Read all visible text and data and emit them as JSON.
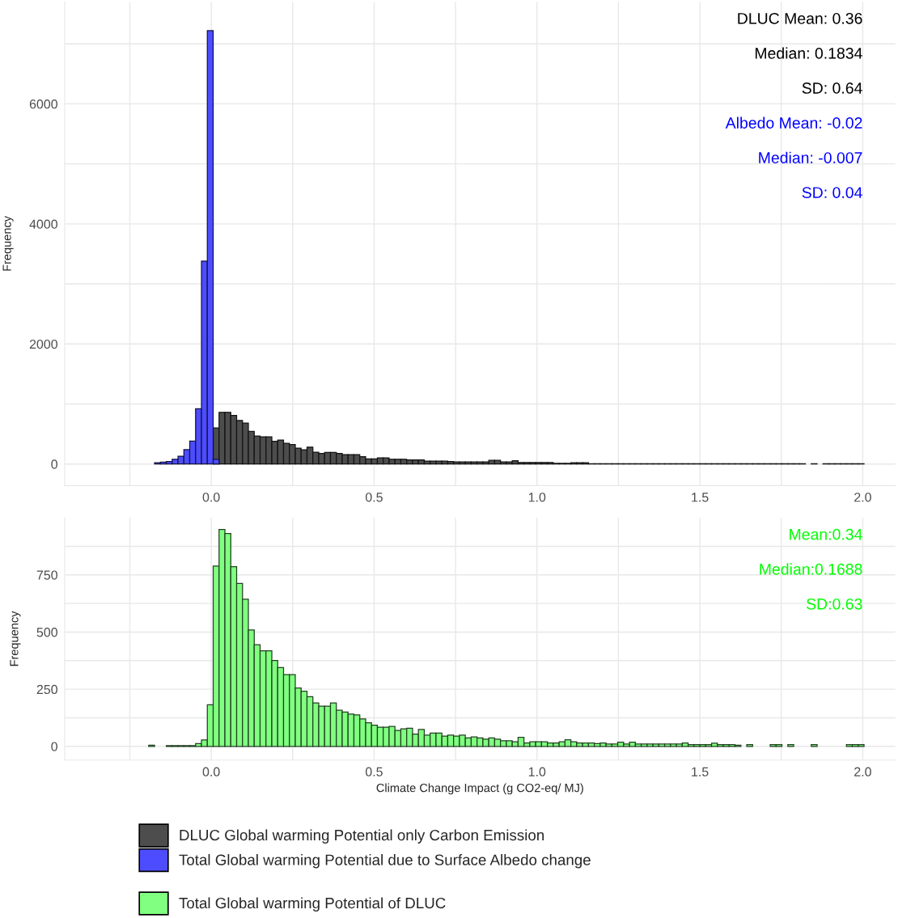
{
  "chart_data": [
    {
      "type": "histogram",
      "ylabel": "Frequency",
      "bins": [
        -0.336,
        -0.318,
        -0.3,
        -0.282,
        -0.264,
        -0.246,
        -0.228,
        -0.21,
        -0.192,
        -0.174,
        -0.156,
        -0.138,
        -0.12,
        -0.102,
        -0.084,
        -0.066,
        -0.048,
        -0.03,
        -0.012,
        0.006,
        0.024,
        0.042,
        0.06,
        0.078,
        0.096,
        0.114,
        0.132,
        0.15,
        0.168,
        0.186,
        0.204,
        0.222,
        0.24,
        0.258,
        0.276,
        0.294,
        0.312,
        0.33,
        0.348,
        0.366,
        0.384,
        0.402,
        0.42,
        0.438,
        0.456,
        0.474,
        0.492,
        0.51,
        0.528,
        0.546,
        0.564,
        0.582,
        0.6,
        0.618,
        0.636,
        0.654,
        0.672,
        0.69,
        0.708,
        0.726,
        0.744,
        0.762,
        0.78,
        0.798,
        0.816,
        0.834,
        0.852,
        0.87,
        0.888,
        0.906,
        0.924,
        0.942,
        0.96,
        0.978,
        0.996,
        1.014,
        1.032,
        1.05,
        1.068,
        1.086,
        1.104,
        1.122,
        1.14,
        1.158,
        1.176,
        1.194,
        1.212,
        1.23,
        1.248,
        1.266,
        1.284,
        1.302,
        1.32,
        1.338,
        1.356,
        1.374,
        1.392,
        1.41,
        1.428,
        1.446,
        1.464,
        1.482,
        1.5,
        1.518,
        1.536,
        1.554,
        1.572,
        1.59,
        1.608,
        1.626,
        1.644,
        1.662,
        1.68,
        1.698,
        1.716,
        1.734,
        1.752,
        1.77,
        1.788,
        1.806,
        1.824,
        1.842,
        1.86,
        1.878,
        1.896,
        1.914,
        1.932,
        1.95,
        1.968,
        1.986,
        2.004
      ],
      "series": [
        {
          "name": "DLUC Global warming Potential only Carbon Emission",
          "color": "#4d4d4d",
          "values": [
            0,
            0,
            0,
            0,
            0,
            0,
            0,
            0,
            0,
            0,
            0,
            0,
            0,
            0,
            0,
            0,
            0,
            0,
            null,
            601,
            861,
            861,
            811,
            726,
            682,
            542,
            466,
            453,
            453,
            377,
            399,
            345,
            323,
            265,
            238,
            282,
            197,
            175,
            193,
            193,
            175,
            157,
            157,
            157,
            121,
            85,
            85,
            103,
            103,
            80,
            80,
            80,
            67,
            67,
            67,
            49,
            49,
            49,
            49,
            40,
            35,
            35,
            35,
            35,
            35,
            35,
            60,
            60,
            35,
            35,
            55,
            25,
            25,
            25,
            25,
            25,
            25,
            10,
            10,
            10,
            20,
            20,
            20,
            5,
            5,
            5,
            5,
            5,
            5,
            5,
            5,
            5,
            5,
            5,
            5,
            5,
            5,
            5,
            5,
            5,
            5,
            5,
            5,
            5,
            5,
            5,
            5,
            5,
            5,
            5,
            5,
            5,
            5,
            5,
            5,
            5,
            5,
            5,
            5,
            5,
            0,
            5,
            0,
            5,
            5,
            5,
            5,
            5,
            5,
            5
          ]
        },
        {
          "name": "Total Global warming Potential due to Surface Albedo change",
          "color": "#4d4dff",
          "values": [
            0,
            0,
            0,
            0,
            0,
            0,
            0,
            0,
            0,
            20,
            30,
            40,
            80,
            130,
            240,
            380,
            920,
            3380,
            7220,
            80,
            0,
            0,
            0,
            0,
            0,
            0,
            0,
            0,
            0,
            0,
            0,
            0,
            0,
            0,
            0,
            0,
            0,
            0,
            0,
            0,
            0,
            0,
            0,
            0,
            0,
            0,
            0,
            0,
            0,
            0,
            0,
            0,
            0,
            0,
            0,
            0,
            0,
            0,
            0,
            0,
            0,
            0,
            0,
            0,
            0,
            0,
            0,
            0,
            0,
            0,
            0,
            0,
            0,
            0,
            0,
            0,
            0,
            0,
            0,
            0,
            0,
            0,
            0,
            0,
            0,
            0,
            0,
            0,
            0,
            0,
            0,
            0,
            0,
            0,
            0,
            0,
            0,
            0,
            0,
            0,
            0,
            0,
            0,
            0,
            0,
            0,
            0,
            0,
            0,
            0,
            0,
            0,
            0,
            0,
            0,
            0,
            0,
            0,
            0,
            0,
            0,
            0,
            0,
            0,
            0,
            0,
            0,
            0,
            0,
            0
          ]
        }
      ],
      "annotations": [
        "DLUC Mean: 0.36",
        "Median: 0.1834",
        "SD: 0.64",
        "Albedo Mean: -0.02",
        "Median: -0.007",
        "SD: 0.04"
      ],
      "xlim": [
        -0.45,
        2.1
      ],
      "ylim": [
        -360,
        7700
      ],
      "xticks": [
        {
          "value": -0.25,
          "label": null
        },
        {
          "value": 0,
          "label": "0.0"
        },
        {
          "value": 0.25,
          "label": null
        },
        {
          "value": 0.5,
          "label": "0.5"
        },
        {
          "value": 0.75,
          "label": null
        },
        {
          "value": 1,
          "label": "1.0"
        },
        {
          "value": 1.25,
          "label": null
        },
        {
          "value": 1.5,
          "label": "1.5"
        },
        {
          "value": 1.75,
          "label": null
        },
        {
          "value": 2,
          "label": "2.0"
        }
      ],
      "yticks": [
        0,
        {
          "value": 1000,
          "label": null
        },
        2000,
        {
          "value": 3000,
          "label": null
        },
        4000,
        {
          "value": 5000,
          "label": null
        },
        6000,
        {
          "value": 7000,
          "label": null
        }
      ],
      "grid": true,
      "legend": "bottom"
    },
    {
      "type": "histogram",
      "ylabel": "Frequency",
      "xlabel": "Climate Change Impact (g CO2-eq/ MJ)",
      "bins": [
        -0.336,
        -0.318,
        -0.3,
        -0.282,
        -0.264,
        -0.246,
        -0.228,
        -0.21,
        -0.192,
        -0.174,
        -0.156,
        -0.138,
        -0.12,
        -0.102,
        -0.084,
        -0.066,
        -0.048,
        -0.03,
        -0.012,
        0.006,
        0.024,
        0.042,
        0.06,
        0.078,
        0.096,
        0.114,
        0.132,
        0.15,
        0.168,
        0.186,
        0.204,
        0.222,
        0.24,
        0.258,
        0.276,
        0.294,
        0.312,
        0.33,
        0.348,
        0.366,
        0.384,
        0.402,
        0.42,
        0.438,
        0.456,
        0.474,
        0.492,
        0.51,
        0.528,
        0.546,
        0.564,
        0.582,
        0.6,
        0.618,
        0.636,
        0.654,
        0.672,
        0.69,
        0.708,
        0.726,
        0.744,
        0.762,
        0.78,
        0.798,
        0.816,
        0.834,
        0.852,
        0.87,
        0.888,
        0.906,
        0.924,
        0.942,
        0.96,
        0.978,
        0.996,
        1.014,
        1.032,
        1.05,
        1.068,
        1.086,
        1.104,
        1.122,
        1.14,
        1.158,
        1.176,
        1.194,
        1.212,
        1.23,
        1.248,
        1.266,
        1.284,
        1.302,
        1.32,
        1.338,
        1.356,
        1.374,
        1.392,
        1.41,
        1.428,
        1.446,
        1.464,
        1.482,
        1.5,
        1.518,
        1.536,
        1.554,
        1.572,
        1.59,
        1.608,
        1.626,
        1.644,
        1.662,
        1.68,
        1.698,
        1.716,
        1.734,
        1.752,
        1.77,
        1.788,
        1.806,
        1.824,
        1.842,
        1.86,
        1.878,
        1.896,
        1.914,
        1.932,
        1.95,
        1.968,
        1.986,
        2.004
      ],
      "series": [
        {
          "name": "Total Global warming Potential of DLUC",
          "color": "#80ff80",
          "values": [
            0,
            0,
            0,
            0,
            0,
            0,
            0,
            0,
            5,
            0,
            0,
            3,
            3,
            3,
            3,
            3,
            12,
            28,
            182,
            789,
            949,
            931,
            786,
            713,
            644,
            509,
            445,
            418,
            418,
            376,
            345,
            314,
            314,
            255,
            241,
            217,
            190,
            176,
            176,
            190,
            158,
            150,
            141,
            138,
            120,
            103,
            93,
            84,
            84,
            87,
            70,
            77,
            79,
            54,
            74,
            49,
            58,
            58,
            45,
            49,
            45,
            49,
            37,
            41,
            37,
            32,
            37,
            32,
            25,
            25,
            20,
            40,
            15,
            20,
            20,
            20,
            15,
            15,
            20,
            29,
            20,
            15,
            15,
            15,
            12,
            15,
            10,
            10,
            18,
            10,
            18,
            10,
            10,
            10,
            10,
            10,
            10,
            10,
            10,
            15,
            8,
            8,
            8,
            8,
            14,
            8,
            8,
            8,
            5,
            0,
            8,
            0,
            0,
            0,
            8,
            8,
            0,
            8,
            0,
            0,
            0,
            8,
            0,
            0,
            0,
            0,
            0,
            8,
            8,
            8
          ]
        }
      ],
      "annotations": [
        "Mean:0.34",
        "Median:0.1688",
        "SD:0.63"
      ],
      "xlim": [
        -0.45,
        2.1
      ],
      "ylim": [
        -60,
        1000
      ],
      "xticks": [
        {
          "value": -0.25,
          "label": null
        },
        {
          "value": 0,
          "label": "0.0"
        },
        {
          "value": 0.25,
          "label": null
        },
        {
          "value": 0.5,
          "label": "0.5"
        },
        {
          "value": 0.75,
          "label": null
        },
        {
          "value": 1,
          "label": "1.0"
        },
        {
          "value": 1.25,
          "label": null
        },
        {
          "value": 1.5,
          "label": "1.5"
        },
        {
          "value": 1.75,
          "label": null
        },
        {
          "value": 2,
          "label": "2.0"
        }
      ],
      "yticks": [
        0,
        {
          "value": 125,
          "label": null
        },
        250,
        {
          "value": 375,
          "label": null
        },
        500,
        {
          "value": 625,
          "label": null
        },
        750,
        {
          "value": 875,
          "label": null
        }
      ],
      "grid": true,
      "legend": "bottom"
    }
  ]
}
